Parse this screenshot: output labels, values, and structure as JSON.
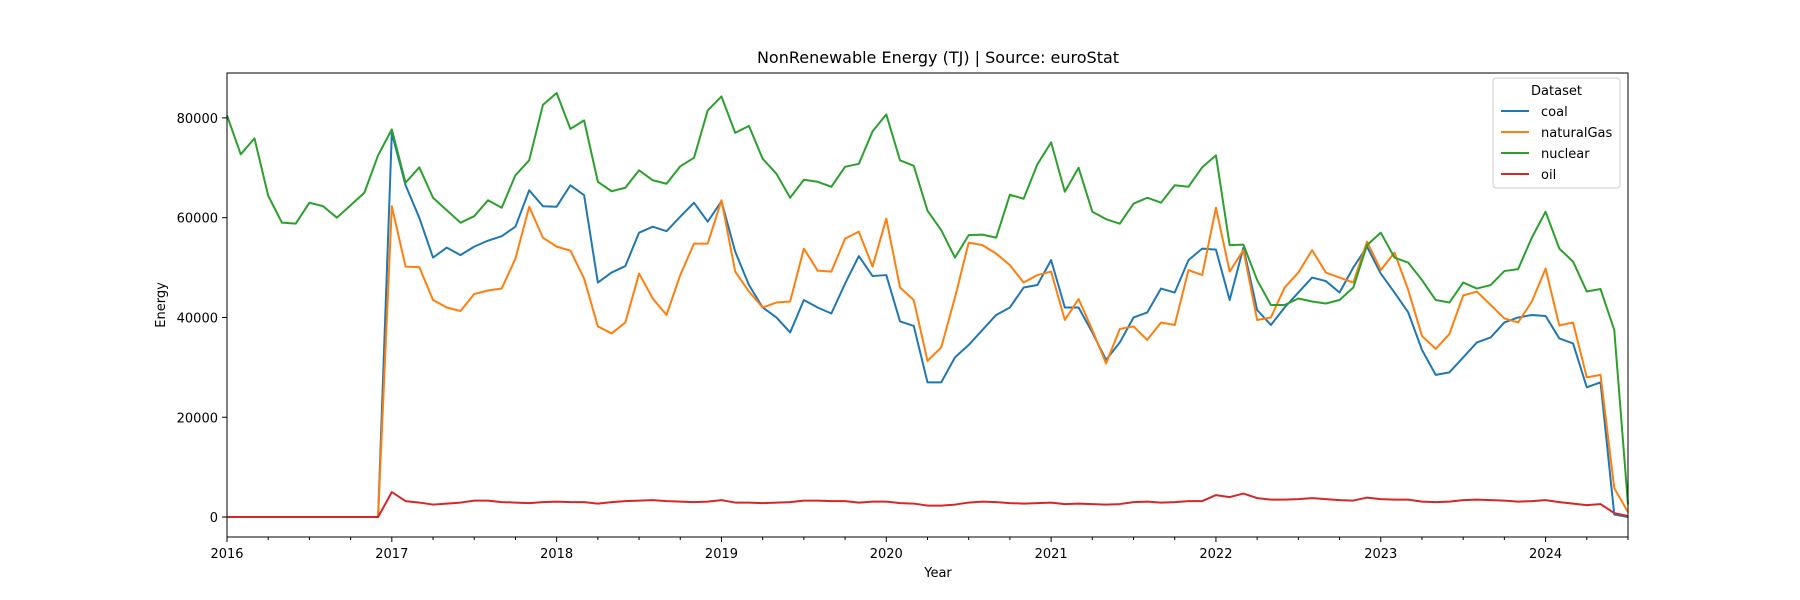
{
  "chart_data": {
    "type": "line",
    "title": "NonRenewable Energy (TJ) | Source: euroStat",
    "xlabel": "Year",
    "ylabel": "Energy",
    "xlim": [
      2016.0,
      2024.5
    ],
    "ylim": [
      -4000,
      89000
    ],
    "x_ticks": [
      2016,
      2017,
      2018,
      2019,
      2020,
      2021,
      2022,
      2023,
      2024
    ],
    "x_tick_labels": [
      "2016",
      "2017",
      "2018",
      "2019",
      "2020",
      "2021",
      "2022",
      "2023",
      "2024"
    ],
    "y_ticks": [
      0,
      20000,
      40000,
      60000,
      80000
    ],
    "y_tick_labels": [
      "0",
      "20000",
      "40000",
      "60000",
      "80000"
    ],
    "grid": false,
    "legend": {
      "title": "Dataset",
      "placement": "top-right"
    },
    "frequency": "monthly",
    "x_start": "2016-01",
    "series": [
      {
        "name": "coal",
        "color": "#1f77b4",
        "values": [
          0,
          0,
          0,
          0,
          0,
          0,
          0,
          0,
          0,
          0,
          0,
          0,
          77000,
          66500,
          60000,
          52000,
          54000,
          52500,
          54200,
          55400,
          56300,
          58200,
          65500,
          62300,
          62200,
          66500,
          64500,
          47000,
          49000,
          50300,
          57000,
          58200,
          57300,
          60200,
          63000,
          59200,
          63300,
          53200,
          46500,
          42000,
          40000,
          37000,
          43500,
          42000,
          40800,
          46800,
          52300,
          48300,
          48500,
          39200,
          38300,
          27000,
          27000,
          32000,
          34500,
          37500,
          40500,
          42000,
          46000,
          46500,
          51500,
          42000,
          42000,
          37000,
          31500,
          35000,
          40000,
          41000,
          45800,
          45000,
          51500,
          53800,
          53600,
          43500,
          54000,
          41500,
          38500,
          42000,
          45000,
          48000,
          47300,
          45000,
          50000,
          54200,
          48800,
          45000,
          41000,
          33500,
          28500,
          29000,
          32000,
          35000,
          36000,
          39000,
          40000,
          40500,
          40300,
          35800,
          34800,
          26000,
          27000,
          500,
          0
        ]
      },
      {
        "name": "naturalGas",
        "color": "#ff7f0e",
        "values": [
          0,
          0,
          0,
          0,
          0,
          0,
          0,
          0,
          0,
          0,
          0,
          0,
          62300,
          50200,
          50100,
          43500,
          42000,
          41300,
          44700,
          45400,
          45800,
          51800,
          62200,
          56000,
          54200,
          53400,
          47800,
          38200,
          36800,
          39000,
          48800,
          43800,
          40500,
          48500,
          54800,
          54800,
          63500,
          49200,
          45200,
          42000,
          43000,
          43200,
          53800,
          49400,
          49200,
          55800,
          57200,
          50200,
          59800,
          46000,
          43500,
          31300,
          34000,
          44000,
          55000,
          54500,
          52800,
          50500,
          47000,
          48500,
          49200,
          39500,
          43700,
          37500,
          30800,
          37700,
          38200,
          35500,
          39000,
          38500,
          49500,
          48500,
          62000,
          49200,
          53500,
          39500,
          40000,
          46000,
          49000,
          53500,
          49000,
          48000,
          47000,
          55200,
          49500,
          53000,
          45500,
          36300,
          33700,
          36700,
          44400,
          45200,
          42500,
          39800,
          39000,
          43200,
          49800,
          38400,
          39000,
          28000,
          28500,
          5800,
          1000
        ]
      },
      {
        "name": "nuclear",
        "color": "#2ca02c",
        "values": [
          80500,
          72700,
          75900,
          64400,
          59000,
          58800,
          63000,
          62300,
          60000,
          62500,
          65000,
          72500,
          77700,
          67000,
          70100,
          64000,
          61500,
          59000,
          60300,
          63500,
          62000,
          68500,
          71500,
          82600,
          85000,
          77800,
          79500,
          67200,
          65300,
          66000,
          69500,
          67500,
          66800,
          70300,
          72000,
          81500,
          84300,
          77000,
          78400,
          71800,
          68800,
          64000,
          67600,
          67200,
          66200,
          70200,
          70800,
          77300,
          80700,
          71500,
          70400,
          61400,
          57500,
          52000,
          56500,
          56600,
          56000,
          64600,
          63800,
          70700,
          75100,
          65200,
          70000,
          61200,
          59700,
          58800,
          62800,
          64000,
          63000,
          66500,
          66200,
          70100,
          72500,
          54500,
          54600,
          47500,
          42500,
          42500,
          43800,
          43200,
          42800,
          43500,
          46000,
          54500,
          57000,
          52000,
          51000,
          47500,
          43500,
          43000,
          47000,
          45800,
          46500,
          49300,
          49700,
          56000,
          61200,
          53800,
          51200,
          45200,
          45700,
          37500,
          2500
        ]
      },
      {
        "name": "oil",
        "color": "#d62728",
        "values": [
          0,
          0,
          0,
          0,
          0,
          0,
          0,
          0,
          0,
          0,
          0,
          0,
          5000,
          3200,
          2900,
          2500,
          2700,
          2900,
          3300,
          3300,
          3000,
          2900,
          2800,
          3000,
          3100,
          3000,
          3000,
          2700,
          3000,
          3200,
          3300,
          3400,
          3200,
          3100,
          3000,
          3100,
          3400,
          2900,
          2900,
          2800,
          2900,
          3000,
          3300,
          3300,
          3200,
          3200,
          2900,
          3100,
          3100,
          2800,
          2700,
          2300,
          2300,
          2500,
          2900,
          3100,
          3000,
          2800,
          2700,
          2800,
          2900,
          2600,
          2700,
          2600,
          2500,
          2600,
          3000,
          3100,
          2900,
          3000,
          3200,
          3200,
          4400,
          4000,
          4700,
          3800,
          3500,
          3500,
          3600,
          3800,
          3600,
          3400,
          3300,
          3900,
          3600,
          3500,
          3500,
          3100,
          3000,
          3100,
          3400,
          3500,
          3400,
          3300,
          3100,
          3200,
          3400,
          3000,
          2700,
          2400,
          2600,
          800,
          200
        ]
      }
    ]
  }
}
